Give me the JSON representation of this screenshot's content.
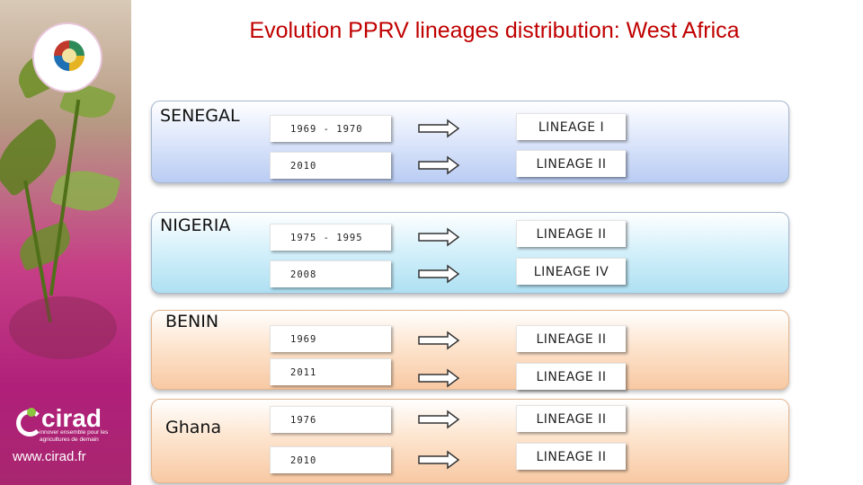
{
  "title": "Evolution PPRV lineages distribution: West Africa",
  "sidebar": {
    "brand": "cirad",
    "tagline": "innover ensemble pour les agricultures de demain",
    "url": "www.cirad.fr",
    "event_logo_icon": "event-logo-icon"
  },
  "countries": [
    {
      "name": "SENEGAL",
      "records": [
        {
          "period": "1969 - 1970",
          "lineage": "LINEAGE I"
        },
        {
          "period": "2010",
          "lineage": "LINEAGE II"
        }
      ]
    },
    {
      "name": "NIGERIA",
      "records": [
        {
          "period": "1975 - 1995",
          "lineage": "LINEAGE II"
        },
        {
          "period": "2008",
          "lineage": "LINEAGE IV"
        }
      ]
    },
    {
      "name": "BENIN",
      "records": [
        {
          "period": "1969",
          "lineage": "LINEAGE II"
        },
        {
          "period": "2011",
          "lineage": "LINEAGE II"
        }
      ]
    },
    {
      "name": "Ghana",
      "records": [
        {
          "period": "1976",
          "lineage": "LINEAGE II"
        },
        {
          "period": "2010",
          "lineage": "LINEAGE II"
        }
      ]
    }
  ],
  "colors": {
    "title": "#c00000",
    "panel_blue": "#b9ccf3",
    "panel_cyan": "#aee0f2",
    "panel_orange": "#f8c9a3"
  }
}
